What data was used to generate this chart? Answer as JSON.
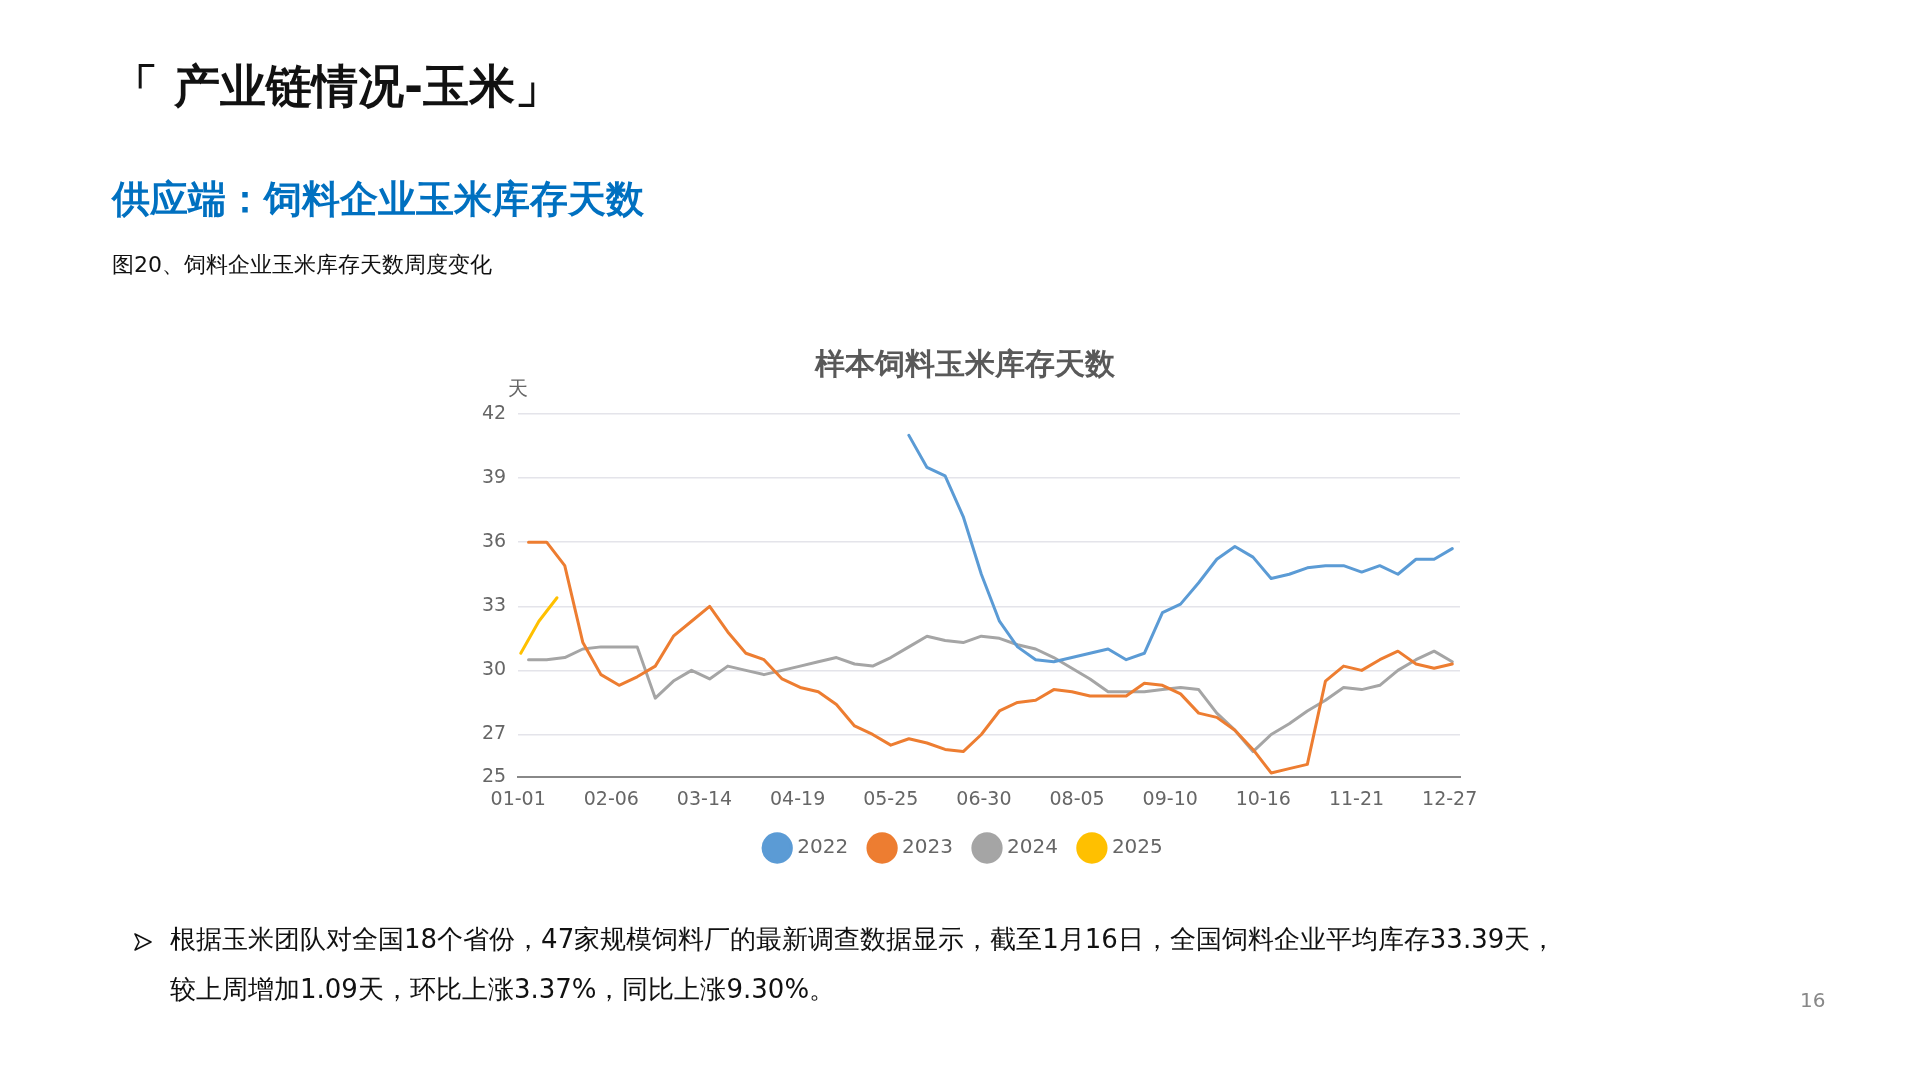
{
  "chart_data": {
    "type": "line",
    "title": "样本饲料玉米库存天数",
    "subtitle": "供应端：饲料企业玉米库存天数",
    "ylabel": "天",
    "annotations": [
      "「 产业链情况-玉米」",
      "图20、饲料企业玉米库存天数周度变化",
      "根据玉米团队对全国18个省份，47家规模饲料厂的最新调查数据显示，截至1月16日，全国饲料企业平均库存33.39天，",
      "较上周增加1.09天，环比上涨3.37%，同比上涨9.30%。",
      "16"
    ],
    "xlim": [
      "--01-01",
      "--12-31"
    ],
    "xticks": [
      {
        "value": "--01-01",
        "label": "01-01"
      },
      {
        "value": "--02-06",
        "label": "02-06"
      },
      {
        "value": "--03-14",
        "label": "03-14"
      },
      {
        "value": "--04-19",
        "label": "04-19"
      },
      {
        "value": "--05-25",
        "label": "05-25"
      },
      {
        "value": "--06-30",
        "label": "06-30"
      },
      {
        "value": "--08-05",
        "label": "08-05"
      },
      {
        "value": "--09-10",
        "label": "09-10"
      },
      {
        "value": "--10-16",
        "label": "10-16"
      },
      {
        "value": "--11-21",
        "label": "11-21"
      },
      {
        "value": "--12-27",
        "label": "12-27"
      }
    ],
    "ylim": [
      25,
      42
    ],
    "yticks": [
      25,
      27,
      30,
      33,
      36,
      39,
      42
    ],
    "grid": "y",
    "legend": "bottom",
    "marker": "none",
    "line_style": "solid",
    "series": [
      {
        "name": "2022",
        "color": "#5b9bd5",
        "x": [
          "--06-01",
          "--06-08",
          "--06-15",
          "--06-22",
          "--06-29",
          "--07-06",
          "--07-13",
          "--07-20",
          "--07-27",
          "--08-03",
          "--08-10",
          "--08-17",
          "--08-24",
          "--08-31",
          "--09-07",
          "--09-14",
          "--09-21",
          "--09-28",
          "--10-05",
          "--10-12",
          "--10-19",
          "--10-26",
          "--11-02",
          "--11-09",
          "--11-16",
          "--11-23",
          "--11-30",
          "--12-07",
          "--12-14",
          "--12-21",
          "--12-28"
        ],
        "values": [
          41.0,
          39.5,
          39.1,
          37.2,
          34.5,
          32.3,
          31.1,
          30.5,
          30.4,
          30.6,
          30.8,
          31.0,
          30.5,
          30.8,
          32.7,
          33.1,
          34.1,
          35.2,
          35.8,
          35.3,
          34.3,
          34.5,
          34.8,
          34.9,
          34.9,
          34.6,
          34.9,
          34.5,
          35.2,
          35.2,
          35.7
        ]
      },
      {
        "name": "2023",
        "color": "#ed7d31",
        "x": [
          "--01-05",
          "--01-12",
          "--01-19",
          "--01-26",
          "--02-02",
          "--02-09",
          "--02-16",
          "--02-23",
          "--03-02",
          "--03-09",
          "--03-16",
          "--03-23",
          "--03-30",
          "--04-06",
          "--04-13",
          "--04-20",
          "--04-27",
          "--05-04",
          "--05-11",
          "--05-18",
          "--05-25",
          "--06-01",
          "--06-08",
          "--06-15",
          "--06-22",
          "--06-29",
          "--07-06",
          "--07-13",
          "--07-20",
          "--07-27",
          "--08-03",
          "--08-10",
          "--08-17",
          "--08-24",
          "--08-31",
          "--09-07",
          "--09-14",
          "--09-21",
          "--09-28",
          "--10-05",
          "--10-12",
          "--10-19",
          "--10-26",
          "--11-02",
          "--11-09",
          "--11-16",
          "--11-23",
          "--11-30",
          "--12-07",
          "--12-14",
          "--12-21",
          "--12-28"
        ],
        "values": [
          36.0,
          36.0,
          34.9,
          31.3,
          29.8,
          29.3,
          29.7,
          30.2,
          31.6,
          32.3,
          33.0,
          31.8,
          30.8,
          30.5,
          29.6,
          29.2,
          29.0,
          28.4,
          27.4,
          27.0,
          26.5,
          26.8,
          26.6,
          26.3,
          26.2,
          27.0,
          28.1,
          28.5,
          28.6,
          29.1,
          29.0,
          28.8,
          28.8,
          28.8,
          29.4,
          29.3,
          28.9,
          28.0,
          27.8,
          27.2,
          26.3,
          25.2,
          25.4,
          25.6,
          29.5,
          30.2,
          30.0,
          30.5,
          30.9,
          30.3,
          30.1,
          30.3
        ]
      },
      {
        "name": "2024",
        "color": "#a5a5a5",
        "x": [
          "--01-05",
          "--01-12",
          "--01-19",
          "--01-26",
          "--02-02",
          "--02-09",
          "--02-16",
          "--02-23",
          "--03-02",
          "--03-09",
          "--03-16",
          "--03-23",
          "--03-30",
          "--04-06",
          "--04-13",
          "--04-20",
          "--04-27",
          "--05-04",
          "--05-11",
          "--05-18",
          "--05-25",
          "--06-01",
          "--06-08",
          "--06-15",
          "--06-22",
          "--06-29",
          "--07-06",
          "--07-13",
          "--07-20",
          "--07-27",
          "--08-03",
          "--08-10",
          "--08-17",
          "--08-24",
          "--08-31",
          "--09-07",
          "--09-14",
          "--09-21",
          "--09-28",
          "--10-05",
          "--10-12",
          "--10-19",
          "--10-26",
          "--11-02",
          "--11-09",
          "--11-16",
          "--11-23",
          "--11-30",
          "--12-07",
          "--12-14",
          "--12-21",
          "--12-28"
        ],
        "values": [
          30.5,
          30.5,
          30.6,
          31.0,
          31.1,
          31.1,
          31.1,
          28.7,
          29.5,
          30.0,
          29.6,
          30.2,
          30.0,
          29.8,
          30.0,
          30.2,
          30.4,
          30.6,
          30.3,
          30.2,
          30.6,
          31.1,
          31.6,
          31.4,
          31.3,
          31.6,
          31.5,
          31.2,
          31.0,
          30.6,
          30.1,
          29.6,
          29.0,
          29.0,
          29.0,
          29.1,
          29.2,
          29.1,
          28.0,
          27.2,
          26.2,
          27.0,
          27.5,
          28.1,
          28.6,
          29.2,
          29.1,
          29.3,
          30.0,
          30.5,
          30.9,
          30.4
        ]
      },
      {
        "name": "2025",
        "color": "#ffc000",
        "x": [
          "--01-02",
          "--01-09",
          "--01-16"
        ],
        "values": [
          30.8,
          32.3,
          33.4
        ]
      }
    ]
  }
}
